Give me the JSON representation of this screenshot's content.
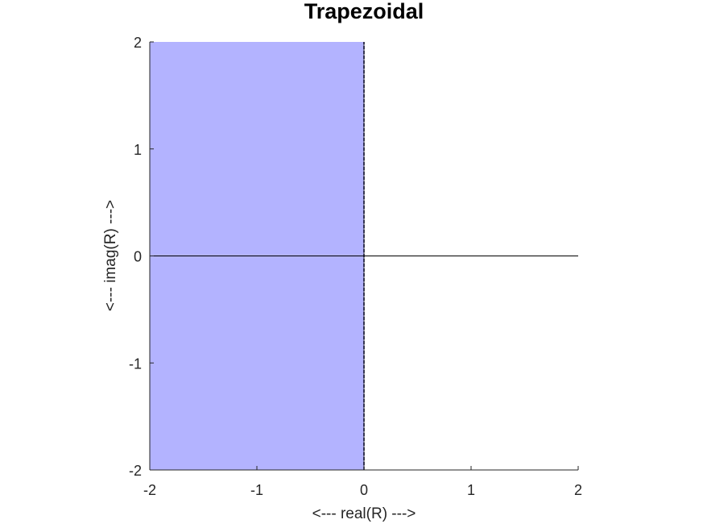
{
  "chart_data": {
    "type": "area",
    "title": "Trapezoidal",
    "xlabel": "<--- real(R) --->",
    "ylabel": "<--- imag(R) --->",
    "xlim": [
      -2,
      2
    ],
    "ylim": [
      -2,
      2
    ],
    "xticks": [
      -2,
      -1,
      0,
      1,
      2
    ],
    "yticks": [
      -2,
      -1,
      0,
      1,
      2
    ],
    "grid": false,
    "legend": "none",
    "stability_region": {
      "x": [
        -2,
        0
      ],
      "y": [
        -2,
        2
      ],
      "color": "#b3b3ff"
    },
    "boundary": {
      "x": [
        0,
        0
      ],
      "y": [
        -2,
        2
      ],
      "color": "#1a1a4d",
      "style": "dashed"
    },
    "reference_lines": {
      "real_axis_y": 0,
      "imag_axis_x": 0,
      "color": "#000000"
    }
  }
}
